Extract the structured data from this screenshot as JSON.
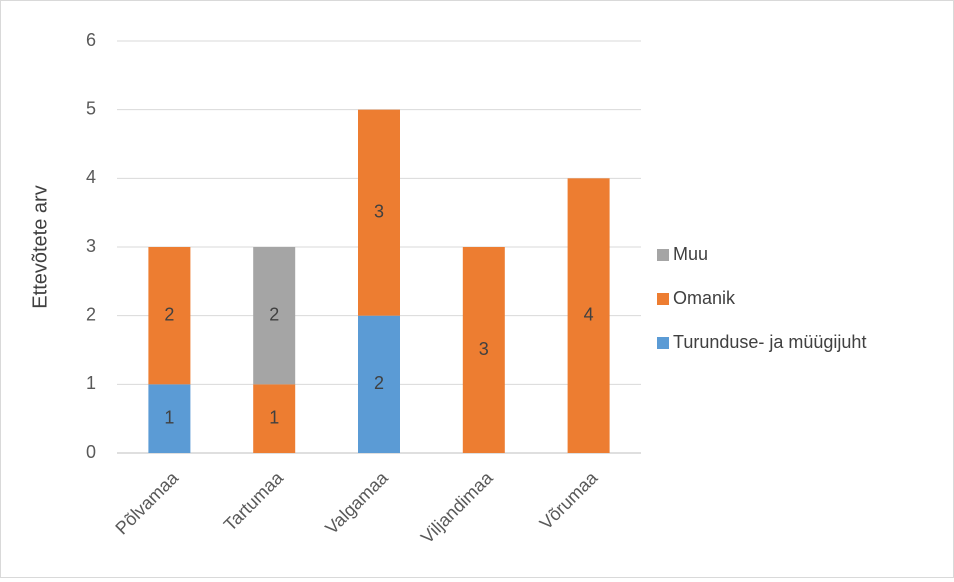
{
  "chart_data": {
    "type": "bar",
    "stacked": true,
    "title": "",
    "xlabel": "",
    "ylabel": "Ettevõtete arv",
    "ylim": [
      0,
      6
    ],
    "yticks": [
      "0",
      "1",
      "2",
      "3",
      "4",
      "5",
      "6"
    ],
    "grid": true,
    "legend_position": "right",
    "categories": [
      "Põlvamaa",
      "Tartumaa",
      "Valgamaa",
      "Viljandimaa",
      "Võrumaa"
    ],
    "series": [
      {
        "name": "Turunduse- ja müügijuht",
        "color": "#5b9bd5",
        "values": [
          1,
          0,
          2,
          0,
          0
        ]
      },
      {
        "name": "Omanik",
        "color": "#ed7d31",
        "values": [
          2,
          1,
          3,
          3,
          4
        ]
      },
      {
        "name": "Muu",
        "color": "#a5a5a5",
        "values": [
          0,
          2,
          0,
          0,
          0
        ]
      }
    ],
    "legend_order": [
      "Muu",
      "Omanik",
      "Turunduse- ja müügijuht"
    ]
  }
}
